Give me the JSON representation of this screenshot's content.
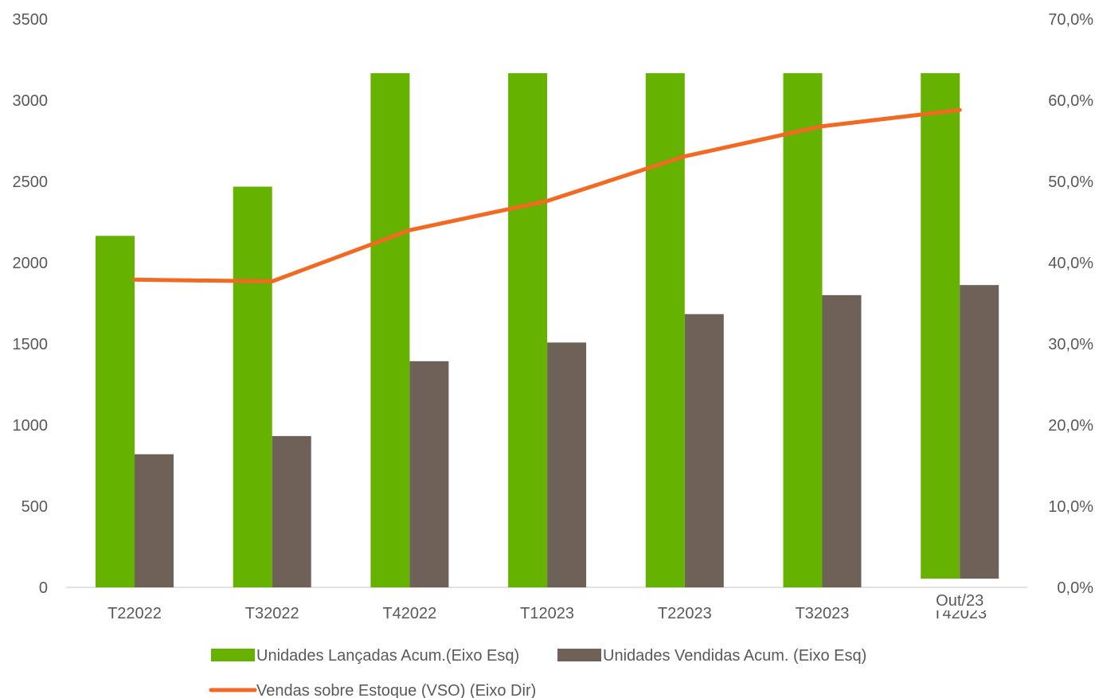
{
  "chart_data": {
    "type": "bar",
    "categories": [
      "T22022",
      "T32022",
      "T42022",
      "T12023",
      "T22023",
      "T32023",
      "T42023"
    ],
    "last_category_overlay_label": "Out/23",
    "series": [
      {
        "name": "Unidades Lançadas Acum.(Eixo Esq)",
        "type": "bar",
        "axis": "left",
        "color": "#66b200",
        "values": [
          2165,
          2468,
          3167,
          3167,
          3167,
          3167,
          3167
        ]
      },
      {
        "name": "Unidades Vendidas Acum. (Eixo Esq)",
        "type": "bar",
        "axis": "left",
        "color": "#6e6258",
        "values": [
          820,
          932,
          1393,
          1508,
          1683,
          1800,
          1862
        ]
      },
      {
        "name": "Vendas sobre Estoque (VSO) (Eixo Dir)",
        "type": "line",
        "axis": "right",
        "color": "#f26a21",
        "values": [
          37.9,
          37.7,
          44.0,
          47.6,
          53.1,
          56.8,
          58.8
        ]
      }
    ],
    "left_axis": {
      "min": 0,
      "max": 3500,
      "ticks": [
        "0",
        "500",
        "1000",
        "1500",
        "2000",
        "2500",
        "3000",
        "3500"
      ]
    },
    "right_axis": {
      "min": 0,
      "max": 70,
      "ticks": [
        "0,0%",
        "10,0%",
        "20,0%",
        "30,0%",
        "40,0%",
        "50,0%",
        "60,0%",
        "70,0%"
      ]
    },
    "grid": false,
    "legend_position": "bottom"
  }
}
